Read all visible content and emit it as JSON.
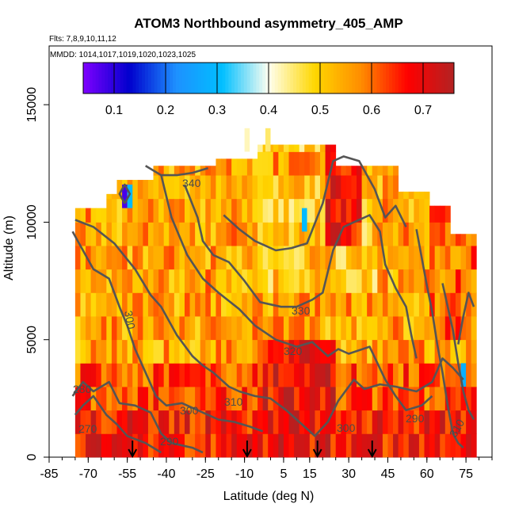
{
  "chart_data": {
    "type": "heatmap",
    "title": "ATOM3 Northbound asymmetry_405_AMP",
    "flights_label": "Flts: 7,8,9,10,11,12",
    "dates_label": "MMDD: 1014,1017,1019,1020,1023,1025",
    "xlabel": "Latitude (deg N)",
    "ylabel": "Altitude (m)",
    "xlim": [
      -85,
      85
    ],
    "ylim": [
      0,
      17500
    ],
    "x_ticks": [
      -85,
      -70,
      -55,
      -40,
      -25,
      -10,
      5,
      15,
      30,
      45,
      60,
      75
    ],
    "y_ticks": [
      0,
      5000,
      10000,
      15000
    ],
    "colorbar": {
      "range": [
        0.04,
        0.76
      ],
      "ticks": [
        "0.1",
        "0.2",
        "0.3",
        "0.4",
        "0.5",
        "0.6",
        "0.7"
      ],
      "colors": [
        "#7f00ff",
        "#0000cd",
        "#1e90ff",
        "#00bfff",
        "#fffff0",
        "#ffd700",
        "#ff8c00",
        "#ff0000",
        "#b22222"
      ]
    },
    "contour_labels": [
      "340",
      "330",
      "320",
      "310",
      "300",
      "300",
      "290",
      "280",
      "270",
      "290",
      "300",
      "310"
    ],
    "profile_arrow_latitudes": [
      -53,
      -9,
      18,
      39
    ]
  }
}
